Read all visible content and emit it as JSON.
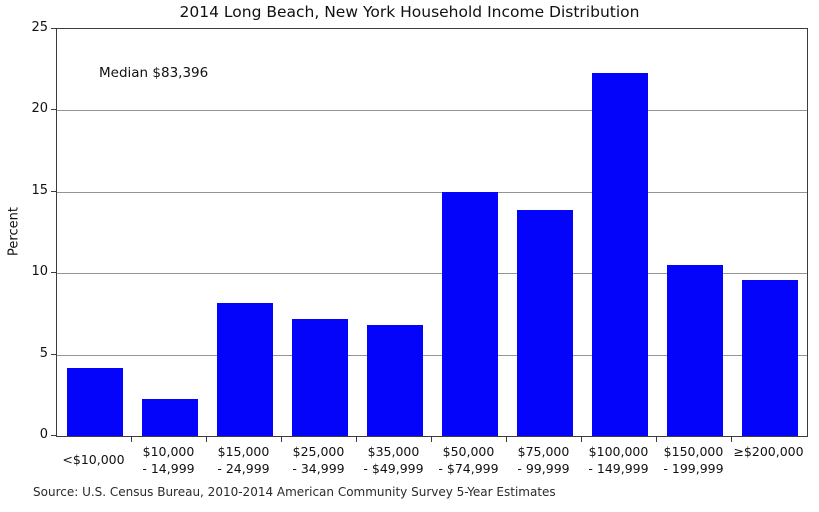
{
  "title": "2014 Long Beach, New York Household Income Distribution",
  "annotation": "Median $83,396",
  "source": "Source: U.S. Census Bureau, 2010-2014 American Community Survey 5-Year Estimates",
  "colors": {
    "bar": "#0404fa",
    "grid": "#949494",
    "spine": "#3c3c3c"
  },
  "chart_data": {
    "type": "bar",
    "title": "2014 Long Beach, New York Household Income Distribution",
    "xlabel": "",
    "ylabel": "Percent",
    "ylim": [
      0,
      25
    ],
    "y_ticks": [
      0,
      5,
      10,
      15,
      20,
      25
    ],
    "grid": true,
    "legend": false,
    "bar_color": "#0404fa",
    "categories": [
      "<$10,000",
      "$10,000 - 14,999",
      "$15,000 - 24,999",
      "$25,000 - 34,999",
      "$35,000 - $49,999",
      "$50,000 - $74,999",
      "$75,000 - 99,999",
      "$100,000 - 149,999",
      "$150,000 - 199,999",
      "≥$200,000"
    ],
    "category_label_lines": [
      [
        "<$10,000"
      ],
      [
        "$10,000",
        "- 14,999"
      ],
      [
        "$15,000",
        "- 24,999"
      ],
      [
        "$25,000",
        "- 34,999"
      ],
      [
        "$35,000",
        "- $49,999"
      ],
      [
        "$50,000",
        "- $74,999"
      ],
      [
        "$75,000",
        "- 99,999"
      ],
      [
        "$100,000",
        "- 149,999"
      ],
      [
        "$150,000",
        "- 199,999"
      ],
      [
        "≥$200,000"
      ]
    ],
    "values": [
      4.2,
      2.3,
      8.2,
      7.2,
      6.8,
      15.0,
      13.9,
      22.3,
      10.5,
      9.6
    ],
    "annotations": [
      "Median $83,396"
    ]
  }
}
